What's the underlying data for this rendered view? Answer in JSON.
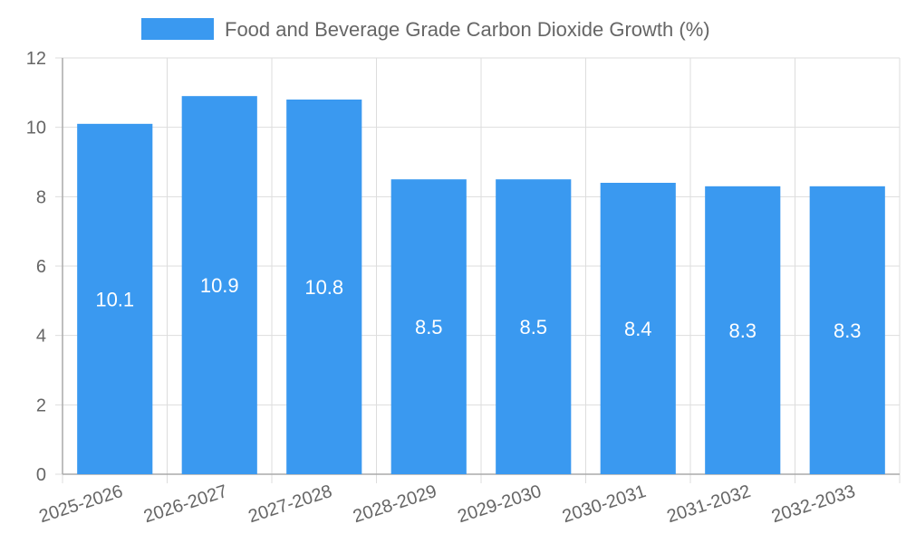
{
  "chart_data": {
    "type": "bar",
    "categories": [
      "2025-2026",
      "2026-2027",
      "2027-2028",
      "2028-2029",
      "2029-2030",
      "2030-2031",
      "2031-2032",
      "2032-2033"
    ],
    "series": [
      {
        "name": "Food and Beverage Grade Carbon Dioxide Growth (%)",
        "values": [
          10.1,
          10.9,
          10.8,
          8.5,
          8.5,
          8.4,
          8.3,
          8.3
        ]
      }
    ],
    "yticks": [
      "0",
      "2",
      "4",
      "6",
      "8",
      "10",
      "12"
    ],
    "ylim": [
      0,
      12
    ],
    "grid": true,
    "legend_position": "top-center",
    "colors": {
      "bar": "#3a99f0",
      "grid": "#dddddd",
      "axis": "#aaaaaa",
      "text": "#666666",
      "label": "#ffffff"
    }
  }
}
